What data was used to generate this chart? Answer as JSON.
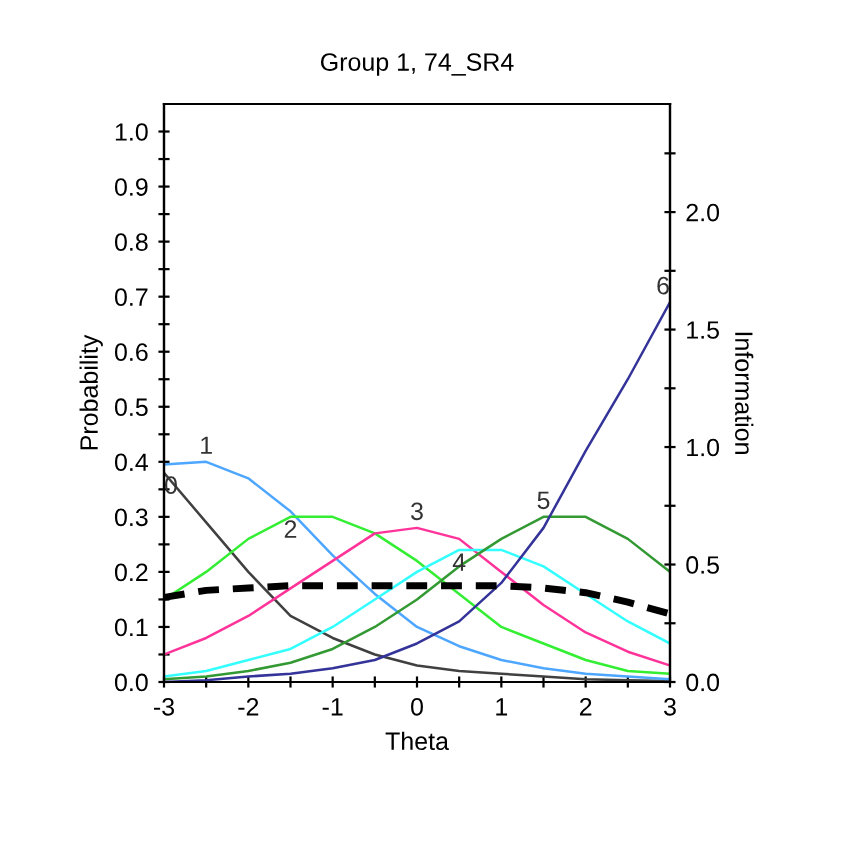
{
  "chart_data": {
    "type": "line",
    "title": "Group 1, 74_SR4",
    "xlabel": "Theta",
    "ylabel": "Probability",
    "y2label": "Information",
    "x": [
      -3,
      -2.5,
      -2,
      -1.5,
      -1,
      -0.5,
      0,
      0.5,
      1,
      1.5,
      2,
      2.5,
      3
    ],
    "xlim": [
      -3,
      3
    ],
    "xticks": [
      -3,
      {
        "value": -2.5,
        "label": null
      },
      -2,
      {
        "value": -1.5,
        "label": null
      },
      -1,
      {
        "value": -0.5,
        "label": null
      },
      0,
      {
        "value": 0.5,
        "label": null
      },
      1,
      {
        "value": 1.5,
        "label": null
      },
      2,
      {
        "value": 2.5,
        "label": null
      },
      3
    ],
    "ylim": [
      0,
      1.05
    ],
    "yticks": [
      "0.0",
      {
        "value": 0.05,
        "label": null
      },
      {
        "value": 0.1,
        "label": "0.1"
      },
      {
        "value": 0.15,
        "label": null
      },
      {
        "value": 0.2,
        "label": "0.2"
      },
      {
        "value": 0.25,
        "label": null
      },
      {
        "value": 0.3,
        "label": "0.3"
      },
      {
        "value": 0.35,
        "label": null
      },
      {
        "value": 0.4,
        "label": "0.4"
      },
      {
        "value": 0.45,
        "label": null
      },
      {
        "value": 0.5,
        "label": "0.5"
      },
      {
        "value": 0.55,
        "label": null
      },
      {
        "value": 0.6,
        "label": "0.6"
      },
      {
        "value": 0.65,
        "label": null
      },
      {
        "value": 0.7,
        "label": "0.7"
      },
      {
        "value": 0.75,
        "label": null
      },
      {
        "value": 0.8,
        "label": "0.8"
      },
      {
        "value": 0.85,
        "label": null
      },
      {
        "value": 0.9,
        "label": "0.9"
      },
      {
        "value": 0.95,
        "label": null
      },
      {
        "value": 1.0,
        "label": "1.0"
      }
    ],
    "y2lim": [
      0,
      2.46
    ],
    "y2ticks": [
      {
        "value": 0,
        "label": "0.0"
      },
      {
        "value": 0.25,
        "label": null
      },
      {
        "value": 0.5,
        "label": "0.5"
      },
      {
        "value": 0.75,
        "label": null
      },
      {
        "value": 1.0,
        "label": "1.0"
      },
      {
        "value": 1.25,
        "label": null
      },
      {
        "value": 1.5,
        "label": "1.5"
      },
      {
        "value": 1.75,
        "label": null
      },
      {
        "value": 2.0,
        "label": "2.0"
      },
      {
        "value": 2.25,
        "label": null
      }
    ],
    "grid": false,
    "legend": false,
    "series": [
      {
        "name": "0",
        "color": "#404040",
        "values": [
          0.38,
          0.29,
          0.2,
          0.12,
          0.08,
          0.05,
          0.03,
          0.02,
          0.015,
          0.01,
          0.005,
          0.003,
          0.002
        ]
      },
      {
        "name": "1",
        "color": "#4da6ff",
        "values": [
          0.395,
          0.4,
          0.37,
          0.31,
          0.23,
          0.16,
          0.1,
          0.065,
          0.04,
          0.025,
          0.015,
          0.01,
          0.005
        ]
      },
      {
        "name": "2",
        "color": "#33ee33",
        "values": [
          0.15,
          0.2,
          0.26,
          0.3,
          0.3,
          0.27,
          0.22,
          0.16,
          0.1,
          0.07,
          0.04,
          0.02,
          0.015
        ]
      },
      {
        "name": "3",
        "color": "#ff3399",
        "values": [
          0.05,
          0.08,
          0.12,
          0.17,
          0.22,
          0.27,
          0.28,
          0.26,
          0.2,
          0.14,
          0.09,
          0.055,
          0.03
        ]
      },
      {
        "name": "4",
        "color": "#33ffff",
        "values": [
          0.01,
          0.02,
          0.04,
          0.06,
          0.1,
          0.15,
          0.2,
          0.24,
          0.24,
          0.21,
          0.16,
          0.11,
          0.07
        ]
      },
      {
        "name": "5",
        "color": "#339933",
        "values": [
          0.005,
          0.01,
          0.02,
          0.035,
          0.06,
          0.1,
          0.15,
          0.21,
          0.26,
          0.3,
          0.3,
          0.26,
          0.2
        ]
      },
      {
        "name": "6",
        "color": "#333399",
        "values": [
          0.0,
          0.003,
          0.01,
          0.015,
          0.025,
          0.04,
          0.07,
          0.11,
          0.18,
          0.28,
          0.42,
          0.55,
          0.69
        ]
      },
      {
        "color": "#000000",
        "axis": "y2",
        "line_style": "dashed",
        "values": [
          0.36,
          0.39,
          0.4,
          0.41,
          0.41,
          0.41,
          0.41,
          0.41,
          0.41,
          0.4,
          0.38,
          0.34,
          0.29
        ]
      }
    ]
  }
}
